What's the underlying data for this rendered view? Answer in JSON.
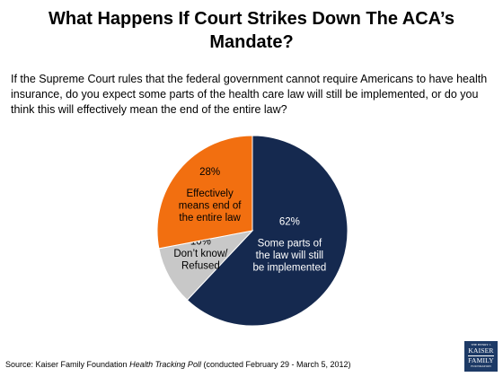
{
  "title": "What Happens If Court Strikes Down The ACA’s Mandate?",
  "question": "If the Supreme Court rules that the federal government cannot require Americans to have health insurance, do you expect some parts of the health care law will still be implemented, or do you think this will effectively mean the end of the entire law?",
  "source": {
    "prefix": "Source: Kaiser Family Foundation ",
    "publication": "Health Tracking Poll",
    "suffix": " (conducted February 29 - March 5, 2012)"
  },
  "logo": {
    "top_text": "THE HENRY J.",
    "line1": "KAISER",
    "line2": "FAMILY",
    "bottom_text": "FOUNDATION"
  },
  "chart_data": {
    "type": "pie",
    "title": "",
    "start_angle_deg": 0,
    "direction": "clockwise",
    "slices": [
      {
        "label": "Some parts of the law will still be implemented",
        "label_lines": [
          "Some parts of",
          "the law will still",
          "be implemented"
        ],
        "value": 62,
        "value_label": "62%",
        "color": "#15294f",
        "text_color": "#ffffff"
      },
      {
        "label": "Don’t know/ Refused",
        "label_lines": [
          "Don’t know/",
          "Refused"
        ],
        "value": 10,
        "value_label": "10%",
        "color": "#c8c8c8",
        "text_color": "#000000"
      },
      {
        "label": "Effectively means end of the entire law",
        "label_lines": [
          "Effectively",
          "means end of",
          "the entire law"
        ],
        "value": 28,
        "value_label": "28%",
        "color": "#f26f10",
        "text_color": "#000000"
      }
    ]
  }
}
